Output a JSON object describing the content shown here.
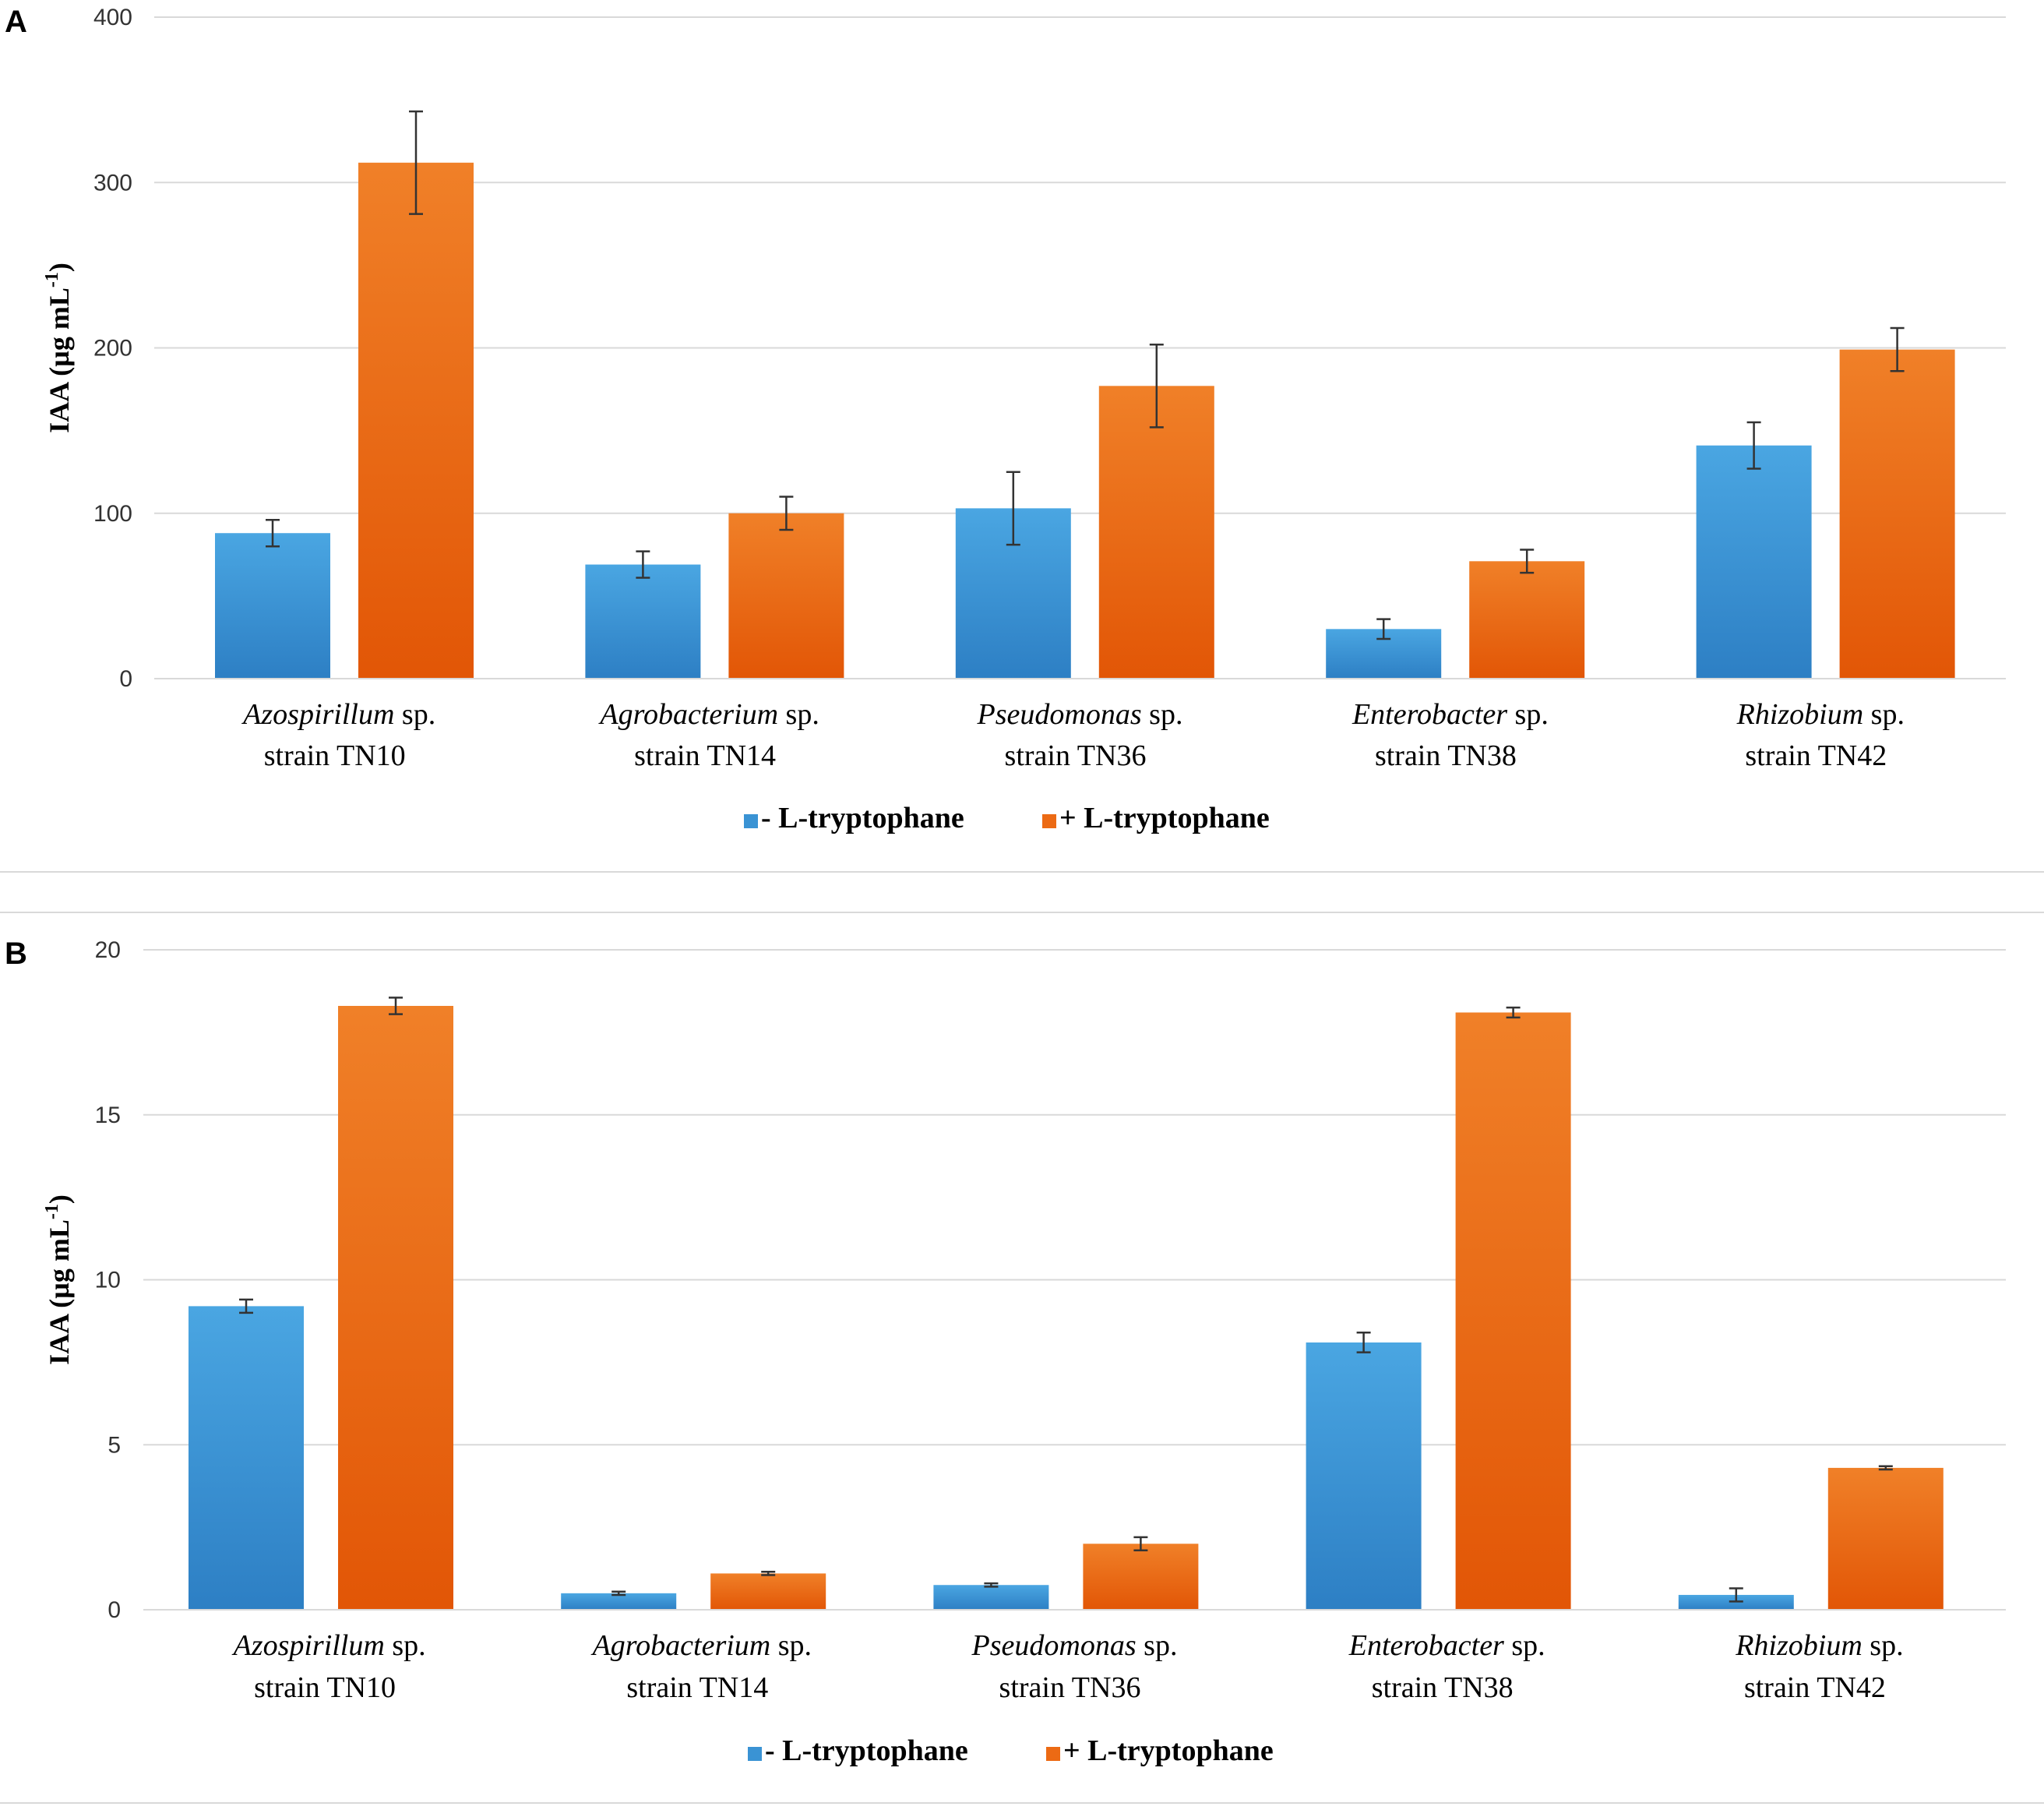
{
  "colors": {
    "minus": "#3a93d4",
    "plus": "#ec6a14",
    "grid": "#d9d9d9"
  },
  "chart_data": [
    {
      "panel": "A",
      "type": "bar",
      "title": "",
      "ylabel": "IAA (µg mL",
      "ylabel_sup": "-1",
      "ylabel_close": ")",
      "ylim": [
        0,
        400
      ],
      "yticks": [
        "0",
        "100",
        "200",
        "300",
        "400"
      ],
      "categories": [
        {
          "genus": "Azospirillum",
          "sp": "sp.",
          "strain": "strain",
          "id": "TN10"
        },
        {
          "genus": "Agrobacterium",
          "sp": "sp.",
          "strain": "strain",
          "id": "TN14"
        },
        {
          "genus": "Pseudomonas",
          "sp": "sp.",
          "strain": "strain",
          "id": "TN36"
        },
        {
          "genus": "Enterobacter",
          "sp": "sp.",
          "strain": "strain",
          "id": "TN38"
        },
        {
          "genus": "Rhizobium",
          "sp": "sp.",
          "strain": "strain",
          "id": "TN42"
        }
      ],
      "series": [
        {
          "name": "- L-tryptophane",
          "values": [
            88,
            69,
            103,
            30,
            141
          ],
          "errors": [
            8,
            8,
            22,
            6,
            14
          ]
        },
        {
          "name": "+ L-tryptophane",
          "values": [
            312,
            100,
            177,
            71,
            199
          ],
          "errors": [
            31,
            10,
            25,
            7,
            13
          ]
        }
      ],
      "legend": "bottom-center"
    },
    {
      "panel": "B",
      "type": "bar",
      "title": "",
      "ylabel": "IAA (µg mL",
      "ylabel_sup": "-1",
      "ylabel_close": ")",
      "ylim": [
        0,
        20
      ],
      "yticks": [
        "0",
        "5",
        "10",
        "15",
        "20"
      ],
      "categories": [
        {
          "genus": "Azospirillum",
          "sp": "sp.",
          "strain": "strain",
          "id": "TN10"
        },
        {
          "genus": "Agrobacterium",
          "sp": "sp.",
          "strain": "strain",
          "id": "TN14"
        },
        {
          "genus": "Pseudomonas",
          "sp": "sp.",
          "strain": "strain",
          "id": "TN36"
        },
        {
          "genus": "Enterobacter",
          "sp": "sp.",
          "strain": "strain",
          "id": "TN38"
        },
        {
          "genus": "Rhizobium",
          "sp": "sp.",
          "strain": "strain",
          "id": "TN42"
        }
      ],
      "series": [
        {
          "name": "- L-tryptophane",
          "values": [
            9.2,
            0.5,
            0.75,
            8.1,
            0.45
          ],
          "errors": [
            0.2,
            0.05,
            0.05,
            0.3,
            0.2
          ]
        },
        {
          "name": "+ L-tryptophane",
          "values": [
            18.3,
            1.1,
            2.0,
            18.1,
            4.3
          ],
          "errors": [
            0.25,
            0.05,
            0.2,
            0.15,
            0.05
          ]
        }
      ],
      "legend": "bottom-center"
    }
  ]
}
